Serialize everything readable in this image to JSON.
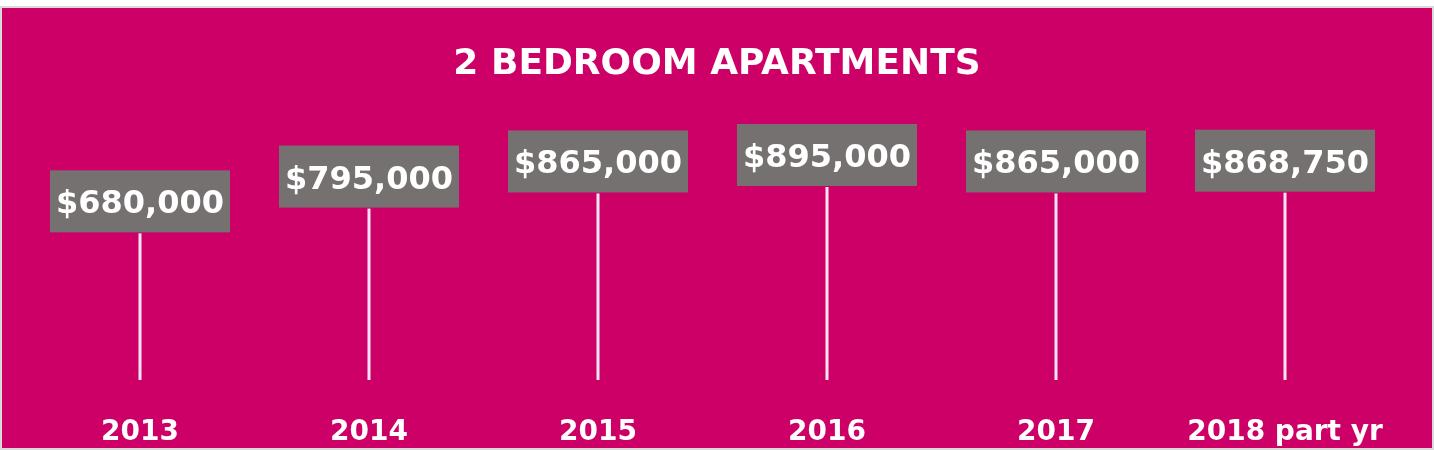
{
  "chart_data": {
    "type": "bar",
    "title": "2 BEDROOM APARTMENTS",
    "categories": [
      "2013",
      "2014",
      "2015",
      "2016",
      "2017",
      "2018 part yr"
    ],
    "series": [
      {
        "color": "#f4e4f4",
        "values": [
          680000,
          795000,
          865000,
          895000,
          865000,
          868750
        ],
        "value_labels": [
          "$680,000",
          "$795,000",
          "$865,000",
          "$895,000",
          "$865,000",
          "$868,750"
        ]
      }
    ],
    "tick_labels": "x"
  }
}
